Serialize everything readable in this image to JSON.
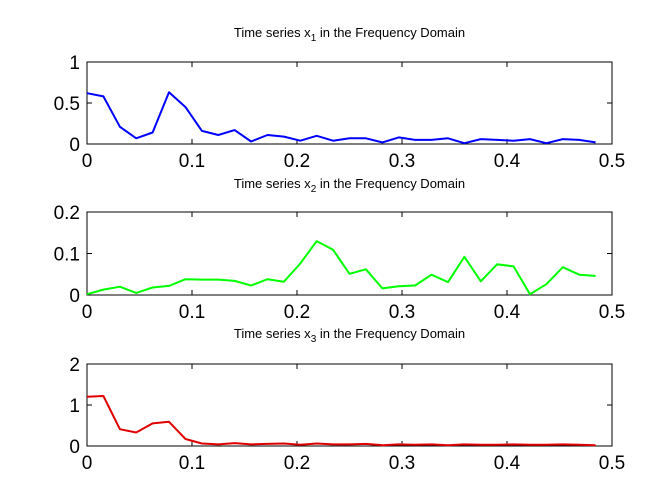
{
  "chart_data": [
    {
      "type": "line",
      "title_prefix": "Time series x",
      "title_subscript": "1",
      "title_suffix": " in the Frequency Domain",
      "xlim": [
        0,
        0.5
      ],
      "ylim": [
        0,
        1
      ],
      "xticks": [
        "0",
        "0.1",
        "0.2",
        "0.3",
        "0.4",
        "0.5"
      ],
      "yticks": [
        "0",
        "0.5",
        "1"
      ],
      "ytick_values": [
        0,
        0.5,
        1
      ],
      "color": "#0000ff",
      "series": [
        {
          "x": [
            0,
            0.0156,
            0.0313,
            0.0469,
            0.0625,
            0.0781,
            0.0938,
            0.1094,
            0.125,
            0.1406,
            0.1563,
            0.1719,
            0.1875,
            0.2031,
            0.2188,
            0.2344,
            0.25,
            0.2656,
            0.2813,
            0.2969,
            0.3125,
            0.3281,
            0.3438,
            0.3594,
            0.375,
            0.3906,
            0.4063,
            0.4219,
            0.4375,
            0.4531,
            0.4688,
            0.4844
          ],
          "values": [
            0.62,
            0.58,
            0.21,
            0.07,
            0.14,
            0.63,
            0.45,
            0.16,
            0.11,
            0.17,
            0.03,
            0.11,
            0.09,
            0.04,
            0.1,
            0.04,
            0.07,
            0.07,
            0.02,
            0.08,
            0.05,
            0.05,
            0.07,
            0.01,
            0.06,
            0.05,
            0.04,
            0.06,
            0.01,
            0.06,
            0.05,
            0.02
          ]
        }
      ]
    },
    {
      "type": "line",
      "title_prefix": "Time series x",
      "title_subscript": "2",
      "title_suffix": " in the Frequency Domain",
      "xlim": [
        0,
        0.5
      ],
      "ylim": [
        0,
        0.2
      ],
      "xticks": [
        "0",
        "0.1",
        "0.2",
        "0.3",
        "0.4",
        "0.5"
      ],
      "yticks": [
        "0",
        "0.1",
        "0.2"
      ],
      "ytick_values": [
        0,
        0.1,
        0.2
      ],
      "color": "#00ff00",
      "series": [
        {
          "x": [
            0,
            0.0156,
            0.0313,
            0.0469,
            0.0625,
            0.0781,
            0.0938,
            0.1094,
            0.125,
            0.1406,
            0.1563,
            0.1719,
            0.1875,
            0.2031,
            0.2188,
            0.2344,
            0.25,
            0.2656,
            0.2813,
            0.2969,
            0.3125,
            0.3281,
            0.3438,
            0.3594,
            0.375,
            0.3906,
            0.4063,
            0.4219,
            0.4375,
            0.4531,
            0.4688,
            0.4844
          ],
          "values": [
            0.002,
            0.013,
            0.02,
            0.005,
            0.018,
            0.022,
            0.038,
            0.037,
            0.037,
            0.034,
            0.023,
            0.038,
            0.032,
            0.076,
            0.13,
            0.109,
            0.051,
            0.062,
            0.016,
            0.021,
            0.023,
            0.049,
            0.031,
            0.092,
            0.033,
            0.074,
            0.069,
            0.002,
            0.026,
            0.067,
            0.049,
            0.046
          ]
        }
      ]
    },
    {
      "type": "line",
      "title_prefix": "Time series x",
      "title_subscript": "3",
      "title_suffix": " in the Frequency Domain",
      "xlim": [
        0,
        0.5
      ],
      "ylim": [
        0,
        2
      ],
      "xticks": [
        "0",
        "0.1",
        "0.2",
        "0.3",
        "0.4",
        "0.5"
      ],
      "yticks": [
        "0",
        "1",
        "2"
      ],
      "ytick_values": [
        0,
        1,
        2
      ],
      "color": "#e00000",
      "series": [
        {
          "x": [
            0,
            0.0156,
            0.0313,
            0.0469,
            0.0625,
            0.0781,
            0.0938,
            0.1094,
            0.125,
            0.1406,
            0.1563,
            0.1719,
            0.1875,
            0.2031,
            0.2188,
            0.2344,
            0.25,
            0.2656,
            0.2813,
            0.2969,
            0.3125,
            0.3281,
            0.3438,
            0.3594,
            0.375,
            0.3906,
            0.4063,
            0.4219,
            0.4375,
            0.4531,
            0.4688,
            0.4844
          ],
          "values": [
            1.2,
            1.22,
            0.41,
            0.33,
            0.55,
            0.59,
            0.17,
            0.06,
            0.04,
            0.07,
            0.04,
            0.05,
            0.06,
            0.03,
            0.06,
            0.04,
            0.04,
            0.05,
            0.02,
            0.04,
            0.03,
            0.04,
            0.02,
            0.04,
            0.03,
            0.03,
            0.04,
            0.03,
            0.03,
            0.04,
            0.03,
            0.02
          ]
        }
      ]
    }
  ]
}
